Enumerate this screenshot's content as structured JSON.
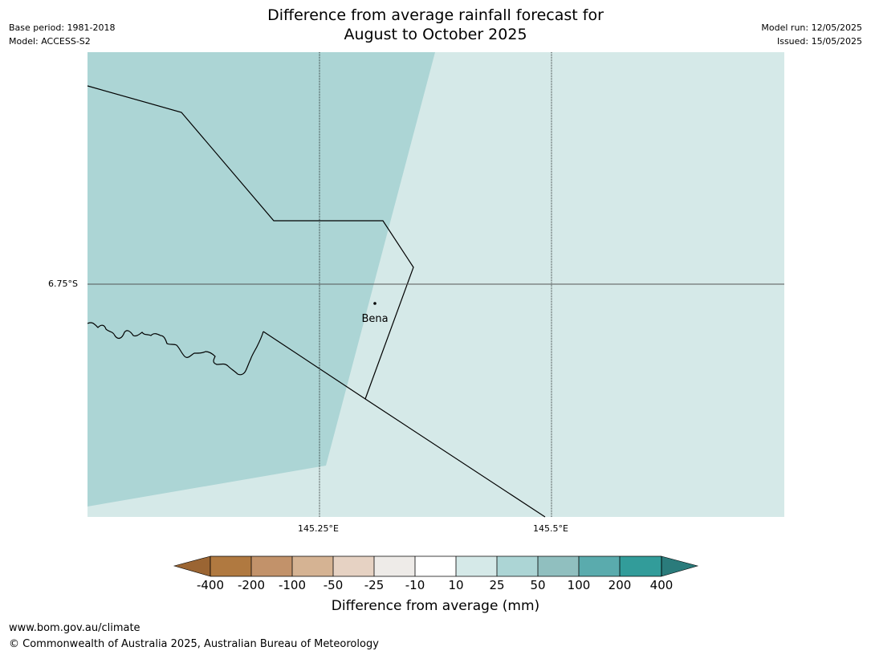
{
  "header": {
    "title_line1": "Difference from average rainfall forecast for",
    "title_line2": "August to October 2025",
    "base_period": "Base period: 1981-2018",
    "model": "Model: ACCESS-S2",
    "model_run": "Model run: 12/05/2025",
    "issued": "Issued: 15/05/2025"
  },
  "map": {
    "lat_label": "6.75°S",
    "lon_labels": [
      "145.25°E",
      "145.5°E"
    ],
    "place": "Bena"
  },
  "colorbar": {
    "ticks": [
      "-400",
      "-200",
      "-100",
      "-50",
      "-25",
      "-10",
      "10",
      "25",
      "50",
      "100",
      "200",
      "400"
    ],
    "colors": [
      "#9b6533",
      "#b07940",
      "#c2926a",
      "#d5b393",
      "#e6d2c3",
      "#eeebe8",
      "#ffffff",
      "#d5e9e8",
      "#acd5d5",
      "#90bfbf",
      "#5aabad",
      "#329c9a",
      "#2a7b7b"
    ],
    "label": "Difference from average (mm)"
  },
  "footer": {
    "url": "www.bom.gov.au/climate",
    "copyright": "© Commonwealth of Australia 2025, Australian Bureau of Meteorology"
  }
}
